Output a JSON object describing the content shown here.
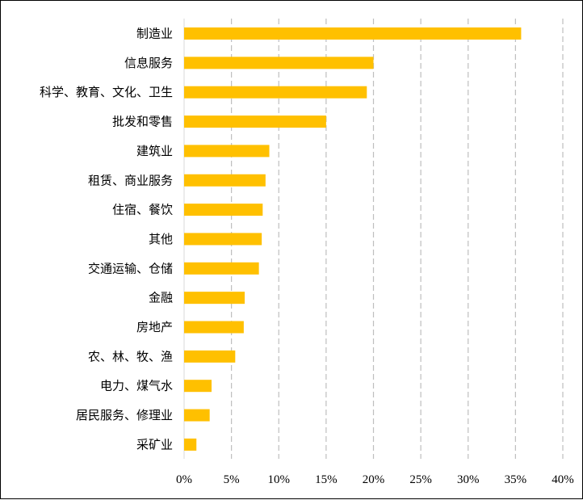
{
  "chart_data": {
    "type": "bar",
    "orientation": "horizontal",
    "title": "",
    "xlabel": "",
    "ylabel": "",
    "categories": [
      "制造业",
      "信息服务",
      "科学、教育、文化、卫生",
      "批发和零售",
      "建筑业",
      "租赁、商业服务",
      "住宿、餐饮",
      "其他",
      "交通运输、仓储",
      "金融",
      "房地产",
      "农、林、牧、渔",
      "电力、煤气水",
      "居民服务、修理业",
      "采矿业"
    ],
    "values": [
      35.6,
      20.0,
      19.3,
      15.0,
      9.0,
      8.6,
      8.3,
      8.2,
      7.9,
      6.4,
      6.3,
      5.4,
      2.9,
      2.7,
      1.3
    ],
    "value_unit": "%",
    "xlim": [
      0,
      40
    ],
    "xticks": [
      0,
      5,
      10,
      15,
      20,
      25,
      30,
      35,
      40
    ],
    "xtick_labels": [
      "0%",
      "5%",
      "10%",
      "15%",
      "20%",
      "25%",
      "30%",
      "35%",
      "40%"
    ],
    "grid": "vertical dashed",
    "legend": "none",
    "bar_color": "#FFC000",
    "grid_color": "#BFBFBF"
  }
}
